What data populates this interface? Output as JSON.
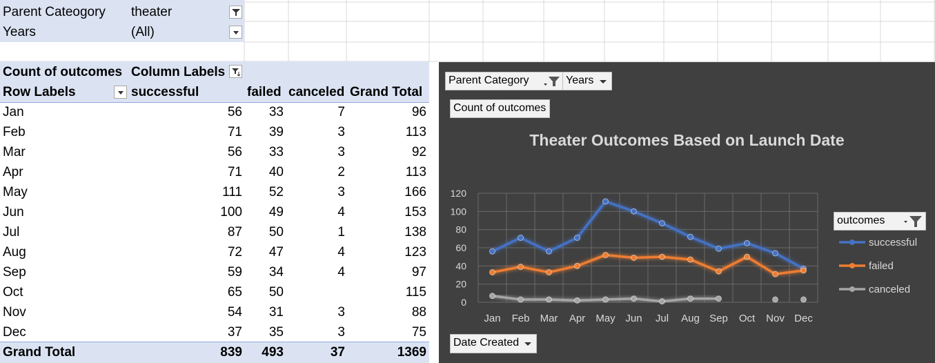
{
  "filters": {
    "parent_label": "Parent Cateogory",
    "parent_value": "theater",
    "years_label": "Years",
    "years_value": "(All)"
  },
  "pivot": {
    "corner_label": "Count of outcomes",
    "column_labels": "Column Labels",
    "row_labels": "Row Labels",
    "headers": [
      "successful",
      "failed",
      "canceled",
      "Grand Total"
    ],
    "rows": [
      {
        "month": "Jan",
        "successful": "56",
        "failed": "33",
        "canceled": "7",
        "total": "96"
      },
      {
        "month": "Feb",
        "successful": "71",
        "failed": "39",
        "canceled": "3",
        "total": "113"
      },
      {
        "month": "Mar",
        "successful": "56",
        "failed": "33",
        "canceled": "3",
        "total": "92"
      },
      {
        "month": "Apr",
        "successful": "71",
        "failed": "40",
        "canceled": "2",
        "total": "113"
      },
      {
        "month": "May",
        "successful": "111",
        "failed": "52",
        "canceled": "3",
        "total": "166"
      },
      {
        "month": "Jun",
        "successful": "100",
        "failed": "49",
        "canceled": "4",
        "total": "153"
      },
      {
        "month": "Jul",
        "successful": "87",
        "failed": "50",
        "canceled": "1",
        "total": "138"
      },
      {
        "month": "Aug",
        "successful": "72",
        "failed": "47",
        "canceled": "4",
        "total": "123"
      },
      {
        "month": "Sep",
        "successful": "59",
        "failed": "34",
        "canceled": "4",
        "total": "97"
      },
      {
        "month": "Oct",
        "successful": "65",
        "failed": "50",
        "canceled": "",
        "total": "115"
      },
      {
        "month": "Nov",
        "successful": "54",
        "failed": "31",
        "canceled": "3",
        "total": "88"
      },
      {
        "month": "Dec",
        "successful": "37",
        "failed": "35",
        "canceled": "3",
        "total": "75"
      }
    ],
    "grand_total": {
      "label": "Grand Total",
      "successful": "839",
      "failed": "493",
      "canceled": "37",
      "total": "1369"
    }
  },
  "chart_buttons": {
    "parent_category": "Parent Category",
    "years": "Years",
    "count_of_outcomes": "Count of outcomes",
    "outcomes": "outcomes",
    "date_created": "Date Created"
  },
  "chart_data": {
    "type": "line",
    "title": "Theater Outcomes Based on Launch Date",
    "categories": [
      "Jan",
      "Feb",
      "Mar",
      "Apr",
      "May",
      "Jun",
      "Jul",
      "Aug",
      "Sep",
      "Oct",
      "Nov",
      "Dec"
    ],
    "ylim": [
      0,
      120
    ],
    "yticks": [
      0,
      20,
      40,
      60,
      80,
      100,
      120
    ],
    "grid": true,
    "legend": "right",
    "series": [
      {
        "name": "successful",
        "color": "#4472c4",
        "values": [
          56,
          71,
          56,
          71,
          111,
          100,
          87,
          72,
          59,
          65,
          54,
          37
        ]
      },
      {
        "name": "failed",
        "color": "#ed7d31",
        "values": [
          33,
          39,
          33,
          40,
          52,
          49,
          50,
          47,
          34,
          50,
          31,
          35
        ]
      },
      {
        "name": "canceled",
        "color": "#a5a5a5",
        "values": [
          7,
          3,
          3,
          2,
          3,
          4,
          1,
          4,
          4,
          null,
          3,
          3
        ]
      }
    ]
  }
}
